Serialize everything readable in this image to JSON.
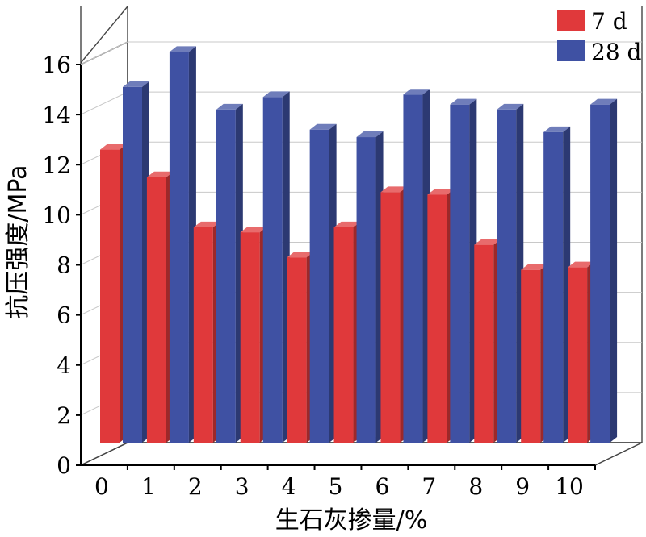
{
  "chart_data": {
    "type": "bar",
    "title": "",
    "xlabel": "生石灰掺量/%",
    "ylabel": "抗压强度/MPa",
    "ylim": [
      0,
      16
    ],
    "yticks": [
      "0",
      "2",
      "4",
      "6",
      "8",
      "10",
      "12",
      "14",
      "16"
    ],
    "categories": [
      "0",
      "1",
      "2",
      "3",
      "4",
      "5",
      "6",
      "7",
      "8",
      "9",
      "10"
    ],
    "grid": true,
    "legend_position": "top-right",
    "series": [
      {
        "name": "7 d",
        "color": "#e0393b",
        "values": [
          11.7,
          10.6,
          8.6,
          8.4,
          7.4,
          8.6,
          10.0,
          9.9,
          7.9,
          6.9,
          7.0
        ]
      },
      {
        "name": "28 d",
        "color": "#3f51a3",
        "values": [
          14.2,
          15.6,
          13.3,
          13.8,
          12.5,
          12.2,
          13.9,
          13.5,
          13.3,
          12.4,
          13.5
        ]
      }
    ]
  }
}
